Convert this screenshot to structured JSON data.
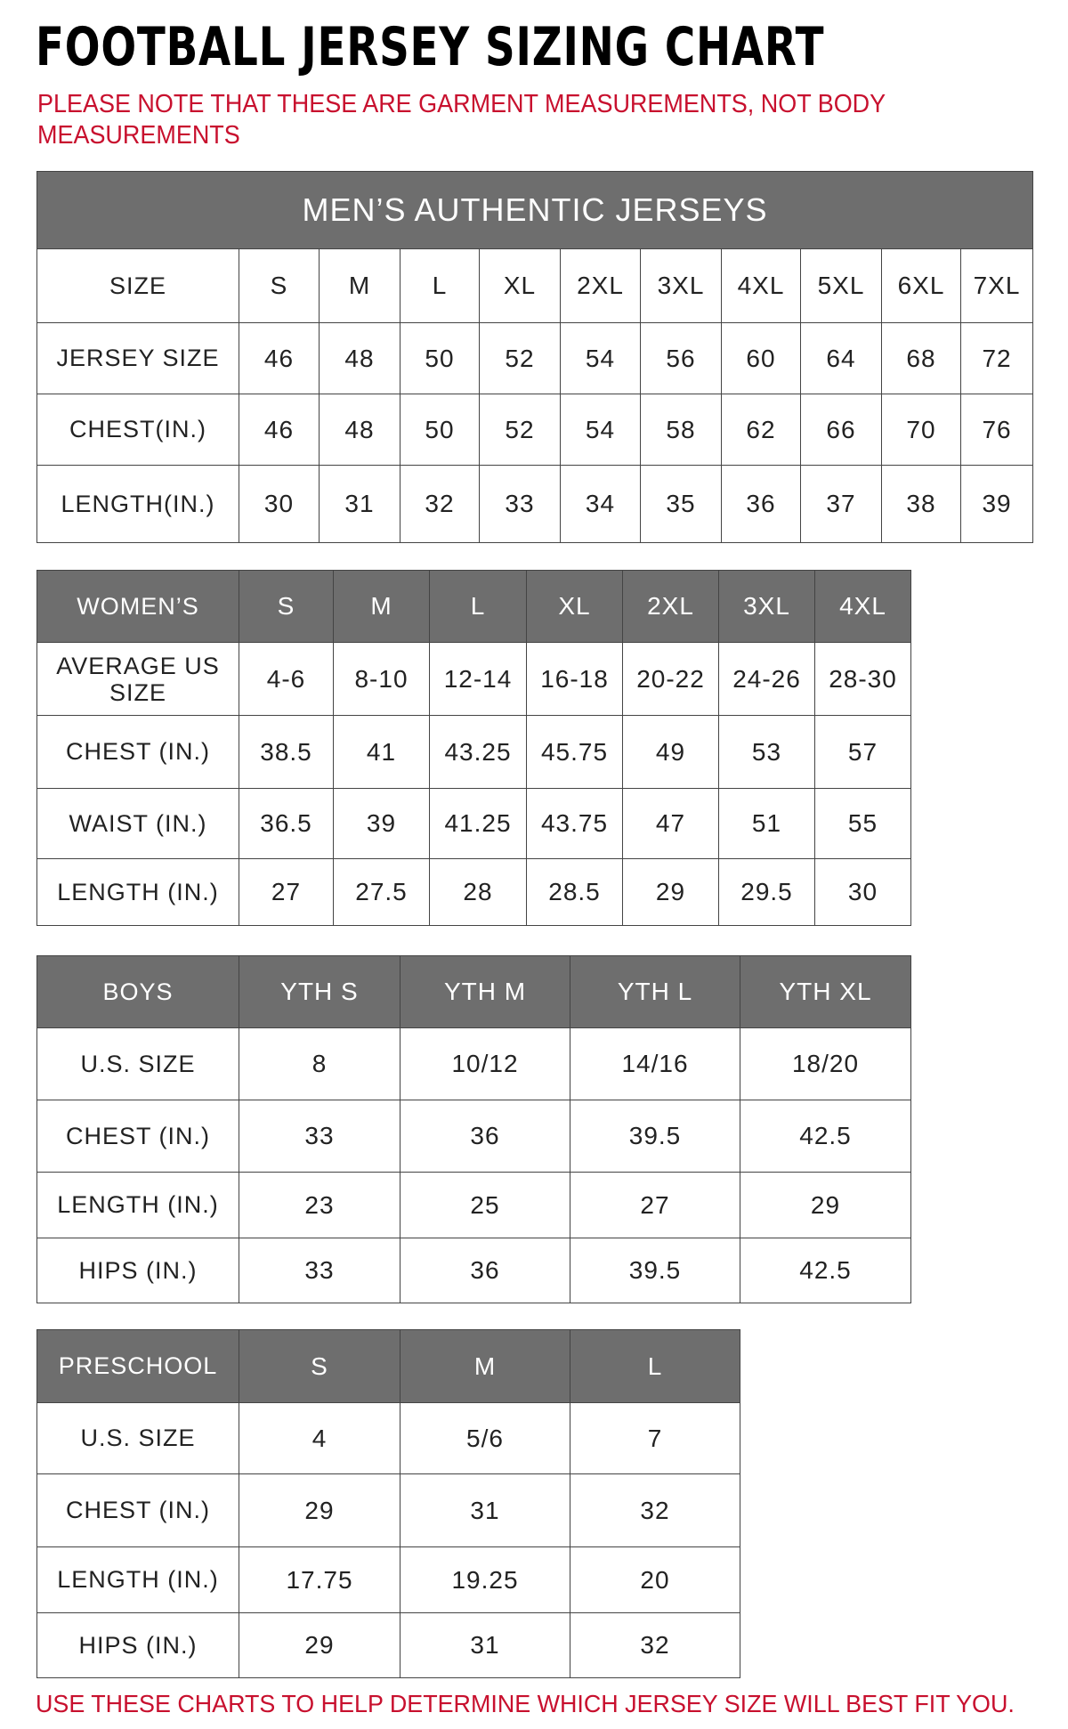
{
  "title": "FOOTBALL JERSEY SIZING CHART",
  "note": "PLEASE NOTE THAT THESE ARE GARMENT MEASUREMENTS, NOT BODY MEASUREMENTS",
  "footer": "USE THESE CHARTS TO HELP DETERMINE WHICH JERSEY SIZE WILL BEST FIT YOU.",
  "colors": {
    "header_bg": "#6e6e6e",
    "note_red": "#c8102e"
  },
  "mens": {
    "caption": "MEN’S AUTHENTIC JERSEYS",
    "headers": [
      "SIZE",
      "S",
      "M",
      "L",
      "XL",
      "2XL",
      "3XL",
      "4XL",
      "5XL",
      "6XL",
      "7XL"
    ],
    "rows": [
      [
        "JERSEY SIZE",
        "46",
        "48",
        "50",
        "52",
        "54",
        "56",
        "60",
        "64",
        "68",
        "72"
      ],
      [
        "CHEST(IN.)",
        "46",
        "48",
        "50",
        "52",
        "54",
        "58",
        "62",
        "66",
        "70",
        "76"
      ],
      [
        "LENGTH(IN.)",
        "30",
        "31",
        "32",
        "33",
        "34",
        "35",
        "36",
        "37",
        "38",
        "39"
      ]
    ]
  },
  "womens": {
    "headers": [
      "WOMEN’S",
      "S",
      "M",
      "L",
      "XL",
      "2XL",
      "3XL",
      "4XL"
    ],
    "rows": [
      [
        "AVERAGE US SIZE",
        "4-6",
        "8-10",
        "12-14",
        "16-18",
        "20-22",
        "24-26",
        "28-30"
      ],
      [
        "CHEST (IN.)",
        "38.5",
        "41",
        "43.25",
        "45.75",
        "49",
        "53",
        "57"
      ],
      [
        "WAIST (IN.)",
        "36.5",
        "39",
        "41.25",
        "43.75",
        "47",
        "51",
        "55"
      ],
      [
        "LENGTH (IN.)",
        "27",
        "27.5",
        "28",
        "28.5",
        "29",
        "29.5",
        "30"
      ]
    ]
  },
  "boys": {
    "headers": [
      "BOYS",
      "YTH S",
      "YTH M",
      "YTH L",
      "YTH XL"
    ],
    "rows": [
      [
        "U.S. SIZE",
        "8",
        "10/12",
        "14/16",
        "18/20"
      ],
      [
        "CHEST (IN.)",
        "33",
        "36",
        "39.5",
        "42.5"
      ],
      [
        "LENGTH (IN.)",
        "23",
        "25",
        "27",
        "29"
      ],
      [
        "HIPS (IN.)",
        "33",
        "36",
        "39.5",
        "42.5"
      ]
    ]
  },
  "preschool": {
    "headers": [
      "PRESCHOOL",
      "S",
      "M",
      "L"
    ],
    "rows": [
      [
        "U.S. SIZE",
        "4",
        "5/6",
        "7"
      ],
      [
        "CHEST (IN.)",
        "29",
        "31",
        "32"
      ],
      [
        "LENGTH (IN.)",
        "17.75",
        "19.25",
        "20"
      ],
      [
        "HIPS (IN.)",
        "29",
        "31",
        "32"
      ]
    ]
  }
}
